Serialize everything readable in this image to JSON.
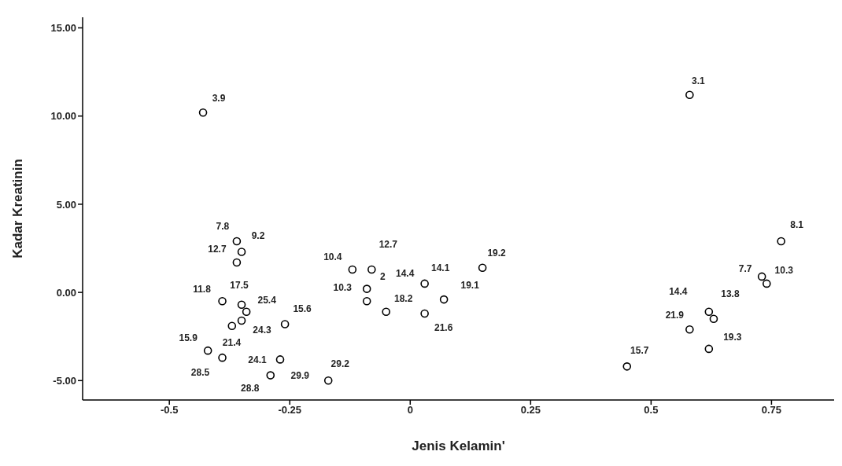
{
  "chart_data": {
    "type": "scatter",
    "xlabel": "Jenis Kelamin'",
    "ylabel": "Kadar Kreatinin",
    "xlim": [
      -0.68,
      0.88
    ],
    "ylim": [
      -6.1,
      15.6
    ],
    "xticks": [
      -0.5,
      -0.25,
      0,
      0.25,
      0.5,
      0.75
    ],
    "yticks": [
      {
        "value": -5,
        "label": "-5.00"
      },
      {
        "value": 0,
        "label": "0.00"
      },
      {
        "value": 5,
        "label": "5.00"
      },
      {
        "value": 10,
        "label": "10.00"
      },
      {
        "value": 15,
        "label": "15.00"
      }
    ],
    "grid": false,
    "legend": false,
    "marker": "circle",
    "series": [
      {
        "color": "#000000",
        "x": [
          -0.43,
          0.58,
          -0.36,
          -0.35,
          -0.36,
          -0.39,
          -0.35,
          -0.34,
          -0.35,
          -0.37,
          -0.26,
          -0.42,
          -0.39,
          -0.27,
          -0.29,
          -0.17,
          -0.12,
          -0.08,
          -0.09,
          -0.09,
          0.03,
          0.15,
          0.07,
          -0.05,
          0.03,
          0.77,
          0.73,
          0.74,
          0.62,
          0.63,
          0.58,
          0.62,
          0.45
        ],
        "values": [
          10.2,
          11.2,
          2.9,
          2.3,
          1.7,
          -0.5,
          -0.7,
          -1.1,
          -1.6,
          -1.9,
          -1.8,
          -3.3,
          -3.7,
          -3.8,
          -4.7,
          -5.0,
          1.3,
          1.3,
          0.2,
          -0.5,
          0.5,
          1.4,
          -0.4,
          -1.1,
          -1.2,
          2.9,
          0.9,
          0.5,
          -1.1,
          -1.5,
          -2.1,
          -3.2,
          -4.2
        ]
      }
    ],
    "annotations": [
      {
        "text": "3.9",
        "x": -0.43,
        "y": 10.2
      },
      {
        "text": "3.1",
        "x": 0.58,
        "y": 11.2
      },
      {
        "text": "7.8",
        "x": -0.36,
        "y": 2.9
      },
      {
        "text": "9.2",
        "x": -0.35,
        "y": 2.3
      },
      {
        "text": "12.7",
        "x": -0.36,
        "y": 1.7
      },
      {
        "text": "11.8",
        "x": -0.39,
        "y": -0.5
      },
      {
        "text": "17.5",
        "x": -0.35,
        "y": -0.7
      },
      {
        "text": "25.4",
        "x": -0.34,
        "y": -1.1
      },
      {
        "text": "15.6",
        "x": -0.26,
        "y": -1.8
      },
      {
        "text": "24.3",
        "x": -0.35,
        "y": -1.6
      },
      {
        "text": "15.9",
        "x": -0.42,
        "y": -3.3
      },
      {
        "text": "21.4",
        "x": -0.39,
        "y": -3.7
      },
      {
        "text": "28.5",
        "x": -0.39,
        "y": -3.7
      },
      {
        "text": "24.1",
        "x": -0.27,
        "y": -3.8
      },
      {
        "text": "28.8",
        "x": -0.29,
        "y": -4.7
      },
      {
        "text": "29.9",
        "x": -0.17,
        "y": -5.0
      },
      {
        "text": "29.2",
        "x": -0.17,
        "y": -5.0
      },
      {
        "text": "10.4",
        "x": -0.12,
        "y": 1.3
      },
      {
        "text": "12.7",
        "x": -0.08,
        "y": 1.3
      },
      {
        "text": "2",
        "x": -0.08,
        "y": 1.3
      },
      {
        "text": "14.4",
        "x": 0.03,
        "y": 0.5
      },
      {
        "text": "14.1",
        "x": 0.03,
        "y": 0.5
      },
      {
        "text": "19.2",
        "x": 0.15,
        "y": 1.4
      },
      {
        "text": "10.3",
        "x": -0.09,
        "y": 0.2
      },
      {
        "text": "18.2",
        "x": -0.05,
        "y": -1.1
      },
      {
        "text": "19.1",
        "x": 0.07,
        "y": -0.4
      },
      {
        "text": "21.6",
        "x": 0.03,
        "y": -1.2
      },
      {
        "text": "8.1",
        "x": 0.77,
        "y": 2.9
      },
      {
        "text": "7.7",
        "x": 0.73,
        "y": 0.9
      },
      {
        "text": "10.3",
        "x": 0.74,
        "y": 0.5
      },
      {
        "text": "14.4",
        "x": 0.62,
        "y": -1.1
      },
      {
        "text": "13.8",
        "x": 0.63,
        "y": -1.5
      },
      {
        "text": "21.9",
        "x": 0.58,
        "y": -2.1
      },
      {
        "text": "19.3",
        "x": 0.62,
        "y": -3.2
      },
      {
        "text": "15.7",
        "x": 0.45,
        "y": -4.2
      }
    ]
  }
}
